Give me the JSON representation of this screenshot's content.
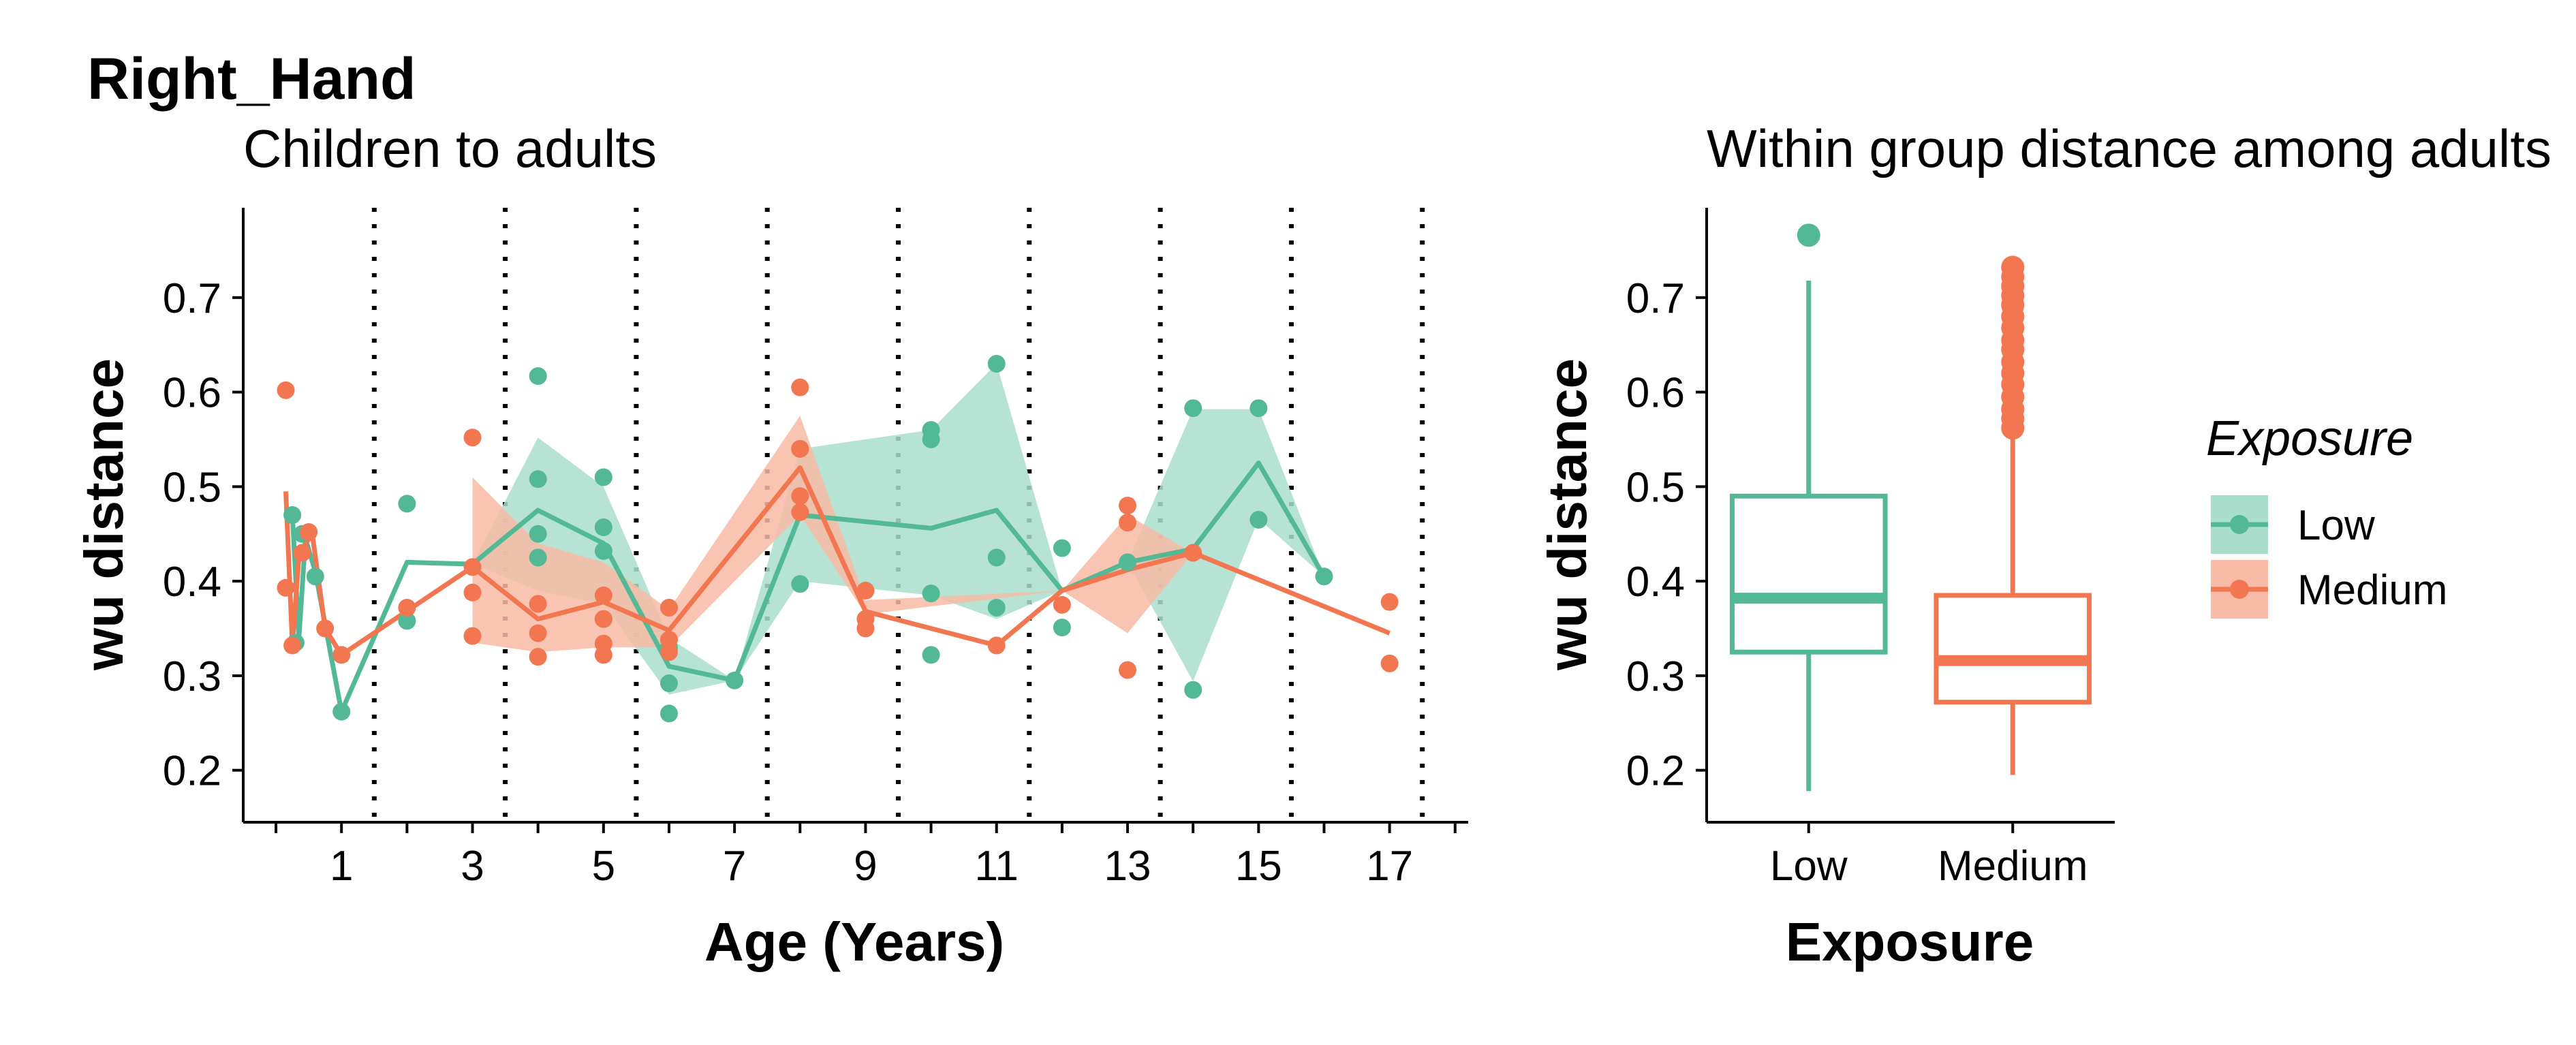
{
  "title": "Right_Hand",
  "colors": {
    "Low": "#52b895",
    "Medium": "#f27650",
    "Low_fill": "#aadecc",
    "Medium_fill": "#f8bba5"
  },
  "legend": {
    "title": "Exposure",
    "items": [
      "Low",
      "Medium"
    ]
  },
  "chart_data": [
    {
      "type": "line",
      "subtitle": "Children to adults",
      "xlabel": "Age (Years)",
      "ylabel": "wu distance",
      "xlim": [
        -0.5,
        18.2
      ],
      "ylim": [
        0.145,
        0.795
      ],
      "x_ticks": [
        1,
        3,
        5,
        7,
        9,
        11,
        13,
        15,
        17
      ],
      "x_minor_ticks": [
        0,
        2,
        4,
        6,
        8,
        10,
        12,
        14,
        16,
        18
      ],
      "y_ticks": [
        0.2,
        0.3,
        0.4,
        0.5,
        0.6,
        0.7
      ],
      "y_tick_labels": [
        "0.2",
        "0.3",
        "0.4",
        "0.5",
        "0.6",
        "0.7"
      ],
      "vlines_dotted": [
        1.5,
        3.5,
        5.5,
        7.5,
        9.5,
        11.5,
        13.5,
        15.5,
        17.5
      ],
      "series": [
        {
          "name": "Low",
          "points": [
            [
              0.25,
              0.47
            ],
            [
              0.3,
              0.335
            ],
            [
              0.4,
              0.45
            ],
            [
              0.6,
              0.405
            ],
            [
              1,
              0.262
            ],
            [
              2,
              0.358
            ],
            [
              2,
              0.482
            ],
            [
              4,
              0.617
            ],
            [
              4,
              0.508
            ],
            [
              4,
              0.45
            ],
            [
              4,
              0.425
            ],
            [
              5,
              0.51
            ],
            [
              5,
              0.457
            ],
            [
              5,
              0.432
            ],
            [
              5,
              0.36
            ],
            [
              6,
              0.33
            ],
            [
              6,
              0.292
            ],
            [
              6,
              0.26
            ],
            [
              7,
              0.295
            ],
            [
              8,
              0.54
            ],
            [
              8,
              0.397
            ],
            [
              9,
              0.39
            ],
            [
              10,
              0.56
            ],
            [
              10,
              0.55
            ],
            [
              10,
              0.387
            ],
            [
              10,
              0.322
            ],
            [
              11,
              0.63
            ],
            [
              11,
              0.425
            ],
            [
              11,
              0.372
            ],
            [
              12,
              0.435
            ],
            [
              12,
              0.351
            ],
            [
              13,
              0.42
            ],
            [
              14,
              0.583
            ],
            [
              14,
              0.285
            ],
            [
              15,
              0.583
            ],
            [
              15,
              0.465
            ],
            [
              16,
              0.405
            ]
          ],
          "mean_line": [
            [
              0.25,
              0.47
            ],
            [
              0.35,
              0.34
            ],
            [
              0.45,
              0.445
            ],
            [
              0.6,
              0.41
            ],
            [
              1,
              0.262
            ],
            [
              2,
              0.42
            ],
            [
              3,
              0.418
            ],
            [
              4,
              0.475
            ],
            [
              5,
              0.44
            ],
            [
              6,
              0.31
            ],
            [
              7,
              0.295
            ],
            [
              8,
              0.47
            ],
            [
              10,
              0.456
            ],
            [
              11,
              0.475
            ],
            [
              12,
              0.39
            ],
            [
              13,
              0.42
            ],
            [
              14,
              0.434
            ],
            [
              15,
              0.525
            ],
            [
              16,
              0.405
            ]
          ],
          "ribbon": [
            [
              3,
              0.418,
              0.418
            ],
            [
              4,
              0.39,
              0.552
            ],
            [
              5,
              0.376,
              0.5
            ],
            [
              6,
              0.28,
              0.34
            ],
            [
              7,
              0.295,
              0.295
            ],
            [
              8,
              0.4,
              0.54
            ],
            [
              10,
              0.385,
              0.56
            ],
            [
              11,
              0.36,
              0.63
            ],
            [
              12,
              0.39,
              0.39
            ],
            [
              13,
              0.42,
              0.42
            ],
            [
              14,
              0.294,
              0.582
            ],
            [
              15,
              0.466,
              0.582
            ],
            [
              16,
              0.405,
              0.405
            ]
          ]
        },
        {
          "name": "Medium",
          "points": [
            [
              0.15,
              0.602
            ],
            [
              0.15,
              0.393
            ],
            [
              0.25,
              0.332
            ],
            [
              0.4,
              0.43
            ],
            [
              0.5,
              0.452
            ],
            [
              0.75,
              0.35
            ],
            [
              1,
              0.322
            ],
            [
              2,
              0.372
            ],
            [
              3,
              0.552
            ],
            [
              3,
              0.415
            ],
            [
              3,
              0.388
            ],
            [
              3,
              0.342
            ],
            [
              4,
              0.376
            ],
            [
              4,
              0.345
            ],
            [
              4,
              0.32
            ],
            [
              5,
              0.385
            ],
            [
              5,
              0.36
            ],
            [
              5,
              0.334
            ],
            [
              5,
              0.322
            ],
            [
              6,
              0.372
            ],
            [
              6,
              0.338
            ],
            [
              6,
              0.325
            ],
            [
              8,
              0.605
            ],
            [
              8,
              0.54
            ],
            [
              8,
              0.49
            ],
            [
              8,
              0.473
            ],
            [
              9,
              0.39
            ],
            [
              9,
              0.36
            ],
            [
              9,
              0.35
            ],
            [
              11,
              0.332
            ],
            [
              12,
              0.375
            ],
            [
              13,
              0.48
            ],
            [
              13,
              0.462
            ],
            [
              13,
              0.306
            ],
            [
              14,
              0.43
            ],
            [
              17,
              0.378
            ],
            [
              17,
              0.313
            ]
          ],
          "mean_line": [
            [
              0.15,
              0.495
            ],
            [
              0.25,
              0.333
            ],
            [
              0.35,
              0.425
            ],
            [
              0.55,
              0.452
            ],
            [
              0.75,
              0.35
            ],
            [
              1,
              0.322
            ],
            [
              3,
              0.415
            ],
            [
              4,
              0.36
            ],
            [
              5,
              0.378
            ],
            [
              6,
              0.348
            ],
            [
              8,
              0.52
            ],
            [
              9,
              0.368
            ],
            [
              11,
              0.332
            ],
            [
              12,
              0.39
            ],
            [
              13,
              0.412
            ],
            [
              14,
              0.43
            ],
            [
              17,
              0.345
            ]
          ],
          "ribbon": [
            [
              3,
              0.335,
              0.51
            ],
            [
              4,
              0.325,
              0.44
            ],
            [
              5,
              0.33,
              0.42
            ],
            [
              6,
              0.33,
              0.37
            ],
            [
              8,
              0.47,
              0.575
            ],
            [
              9,
              0.365,
              0.38
            ],
            [
              12,
              0.39,
              0.39
            ],
            [
              13,
              0.345,
              0.47
            ],
            [
              14,
              0.43,
              0.43
            ]
          ]
        }
      ]
    },
    {
      "type": "box",
      "subtitle": "Within group distance among adults",
      "xlabel": "Exposure",
      "ylabel": "wu distance",
      "categories": [
        "Low",
        "Medium"
      ],
      "ylim": [
        0.145,
        0.795
      ],
      "y_ticks": [
        0.2,
        0.3,
        0.4,
        0.5,
        0.6,
        0.7
      ],
      "y_tick_labels": [
        "0.2",
        "0.3",
        "0.4",
        "0.5",
        "0.6",
        "0.7"
      ],
      "boxes": [
        {
          "name": "Low",
          "whisker_low": 0.178,
          "q1": 0.325,
          "median": 0.382,
          "q3": 0.49,
          "whisker_high": 0.718,
          "outliers": [
            0.766
          ]
        },
        {
          "name": "Medium",
          "whisker_low": 0.195,
          "q1": 0.272,
          "median": 0.316,
          "q3": 0.385,
          "whisker_high": 0.555,
          "outliers": [
            0.562,
            0.572,
            0.582,
            0.595,
            0.608,
            0.62,
            0.632,
            0.645,
            0.655,
            0.668,
            0.68,
            0.692,
            0.702,
            0.712,
            0.722,
            0.732
          ]
        }
      ]
    }
  ]
}
